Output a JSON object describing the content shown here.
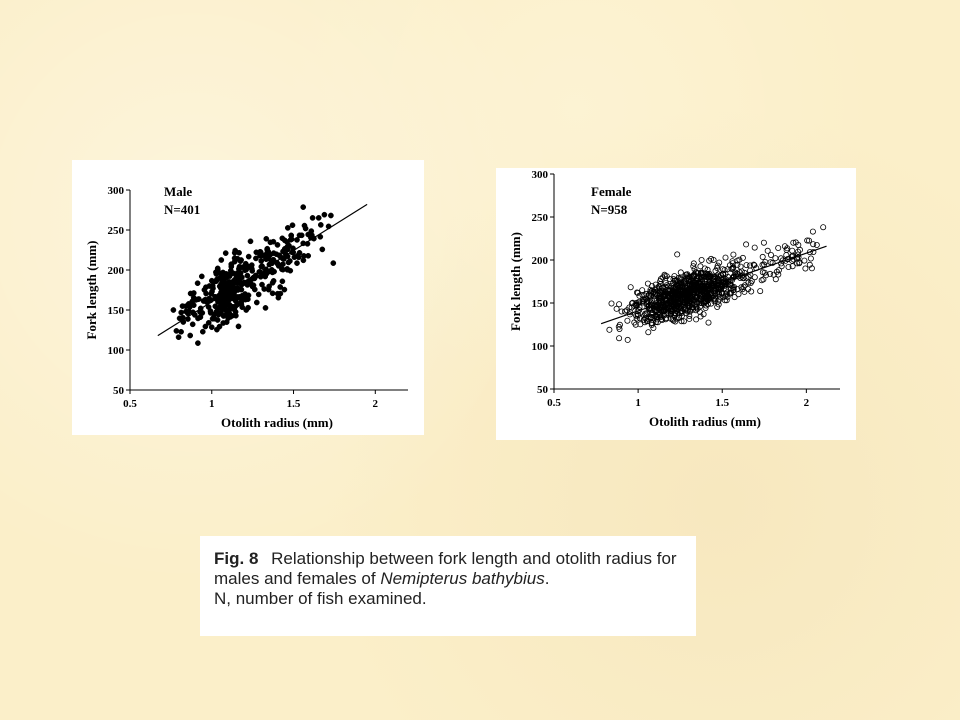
{
  "caption": {
    "figure_label": "Fig. 8",
    "text_before_species": "Relationship between fork length and otolith radius for males and females of",
    "species": "Nemipterus bathybius",
    "text_after_species": ".",
    "note": "N, number of fish examined."
  },
  "chart_data": [
    {
      "id": "male",
      "type": "scatter",
      "legend": [
        "Male",
        "N=401"
      ],
      "xlabel": "Otolith radius (mm)",
      "ylabel": "Fork length (mm)",
      "xlim": [
        0.5,
        2.2
      ],
      "ylim": [
        50,
        300
      ],
      "xticks": [
        0.5,
        1,
        1.5,
        2
      ],
      "yticks": [
        50,
        100,
        150,
        200,
        250,
        300
      ],
      "marker": "filled-circle",
      "n": 401,
      "regression": {
        "x": [
          0.67,
          1.95
        ],
        "y": [
          118,
          282
        ]
      },
      "noise_sd": 19,
      "clusters": [
        {
          "x_mean": 1.1,
          "x_sd": 0.08,
          "count": 220
        },
        {
          "x_mean": 1.42,
          "x_sd": 0.13,
          "count": 141
        },
        {
          "x_mean": 0.88,
          "x_sd": 0.07,
          "count": 40
        }
      ],
      "x_range": [
        0.7,
        1.9
      ]
    },
    {
      "id": "female",
      "type": "scatter",
      "legend": [
        "Female",
        "N=958"
      ],
      "xlabel": "Otolith radius (mm)",
      "ylabel": "Fork length (mm)",
      "xlim": [
        0.5,
        2.2
      ],
      "ylim": [
        50,
        300
      ],
      "xticks": [
        0.5,
        1,
        1.5,
        2
      ],
      "yticks": [
        50,
        100,
        150,
        200,
        250,
        300
      ],
      "marker": "open-circle",
      "n": 958,
      "regression": {
        "x": [
          0.78,
          2.12
        ],
        "y": [
          126,
          216
        ]
      },
      "noise_sd": 12,
      "clusters": [
        {
          "x_mean": 1.3,
          "x_sd": 0.18,
          "count": 900
        },
        {
          "x_mean": 1.9,
          "x_sd": 0.12,
          "count": 58
        }
      ],
      "x_range": [
        0.75,
        2.1
      ]
    }
  ]
}
